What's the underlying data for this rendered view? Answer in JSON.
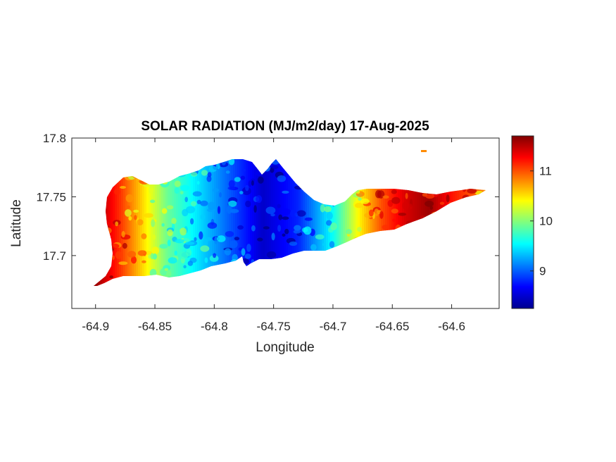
{
  "chart_data": {
    "type": "heatmap",
    "title": "SOLAR RADIATION (MJ/m2/day) 17-Aug-2025",
    "xlabel": "Longitude",
    "ylabel": "Latitude",
    "xlim": [
      -64.92,
      -64.56
    ],
    "ylim": [
      17.655,
      17.8
    ],
    "xticks": [
      -64.9,
      -64.85,
      -64.8,
      -64.75,
      -64.7,
      -64.65,
      -64.6
    ],
    "xtick_labels": [
      "-64.9",
      "-64.85",
      "-64.8",
      "-64.75",
      "-64.7",
      "-64.65",
      "-64.6"
    ],
    "yticks": [
      17.7,
      17.75,
      17.8
    ],
    "ytick_labels": [
      "17.7",
      "17.75",
      "17.8"
    ],
    "colorbar": {
      "colormap": "jet",
      "range": [
        8.25,
        11.7
      ],
      "ticks": [
        9,
        10,
        11
      ],
      "tick_labels": [
        "9",
        "10",
        "11"
      ]
    },
    "profile": {
      "description_lon": [
        -64.9,
        -64.88,
        -64.86,
        -64.84,
        -64.8,
        -64.76,
        -64.73,
        -64.7,
        -64.68,
        -64.66,
        -64.64,
        -64.62,
        -64.6,
        -64.57
      ],
      "values": [
        11.6,
        11.1,
        10.5,
        9.9,
        9.2,
        8.5,
        8.8,
        9.6,
        10.4,
        11.0,
        11.4,
        11.6,
        11.2,
        10.8
      ]
    }
  }
}
